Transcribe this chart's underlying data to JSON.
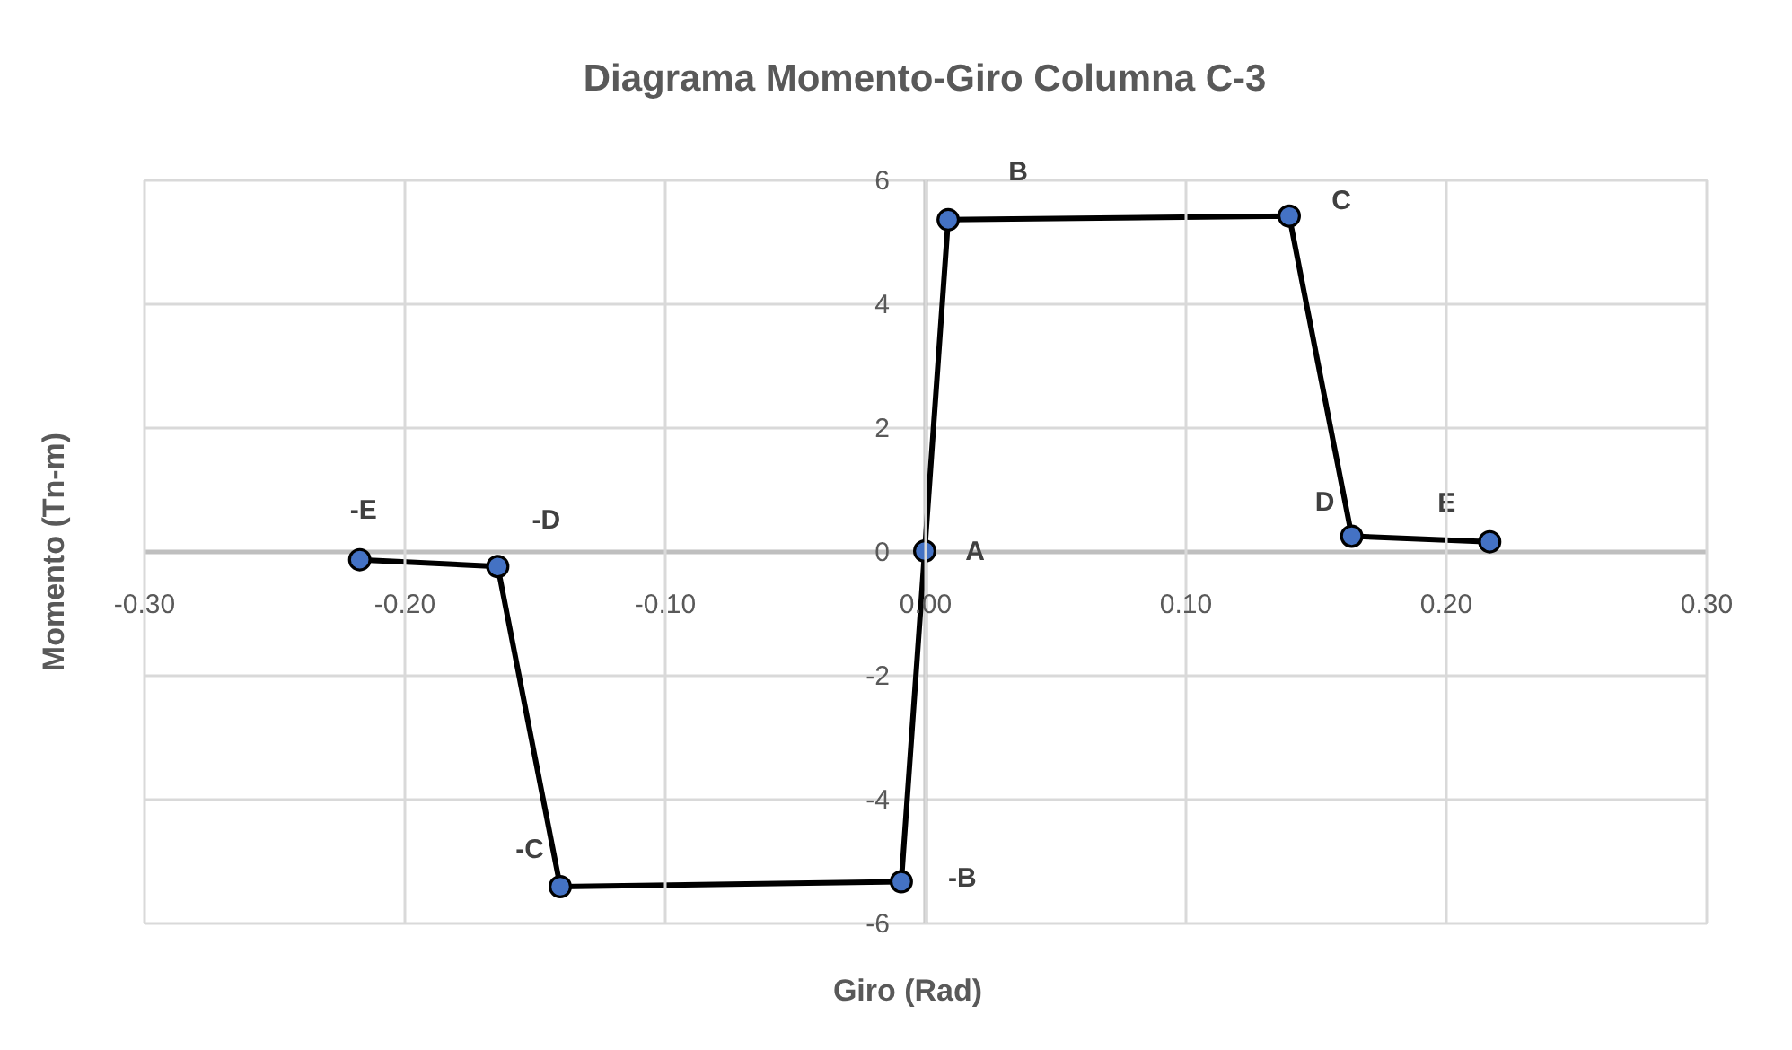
{
  "chart_data": {
    "type": "line",
    "title": "Diagrama Momento-Giro Columna C-3",
    "xlabel": "Giro (Rad)",
    "ylabel": "Momento (Tn-m)",
    "x": [
      -0.217,
      -0.164,
      -0.14,
      -0.009,
      0,
      0.009,
      0.14,
      0.164,
      0.217
    ],
    "series": [
      {
        "color": "#000000",
        "colors": [
          "#4472c4",
          "#4472c4",
          "#4472c4",
          "#4472c4",
          "#4472c4",
          "#4472c4",
          "#4472c4",
          "#4472c4",
          "#4472c4"
        ],
        "values": [
          -0.14,
          -0.25,
          -5.42,
          -5.34,
          0,
          5.35,
          5.41,
          0.24,
          0.15
        ]
      }
    ],
    "xlim": [
      -0.3,
      0.3
    ],
    "xticks": [
      {
        "value": -0.3,
        "label": "-0.30"
      },
      {
        "value": -0.2,
        "label": "-0.20"
      },
      {
        "value": -0.1,
        "label": "-0.10"
      },
      {
        "value": 0,
        "label": "0.00"
      },
      {
        "value": 0.1,
        "label": "0.10"
      },
      {
        "value": 0.2,
        "label": "0.20"
      },
      {
        "value": 0.3,
        "label": "0.30"
      }
    ],
    "ylim": [
      -6,
      6
    ],
    "yticks": [
      -6,
      -4,
      -2,
      0,
      2,
      4,
      6
    ],
    "grid": true,
    "marker": "circle",
    "line_style": "solid",
    "annotations": [
      {
        "text": "-E",
        "x": -0.217,
        "y": -0.14
      },
      {
        "text": "-D",
        "x": -0.164,
        "y": -0.25
      },
      {
        "text": "-C",
        "x": -0.14,
        "y": -5.42
      },
      {
        "text": "-B",
        "x": -0.009,
        "y": -5.34
      },
      {
        "text": "A",
        "x": 0,
        "y": 0
      },
      {
        "text": "B",
        "x": 0.009,
        "y": 5.35
      },
      {
        "text": "C",
        "x": 0.14,
        "y": 5.41
      },
      {
        "text": "D",
        "x": 0.164,
        "y": 0.24
      },
      {
        "text": "E",
        "x": 0.217,
        "y": 0.15
      }
    ]
  }
}
